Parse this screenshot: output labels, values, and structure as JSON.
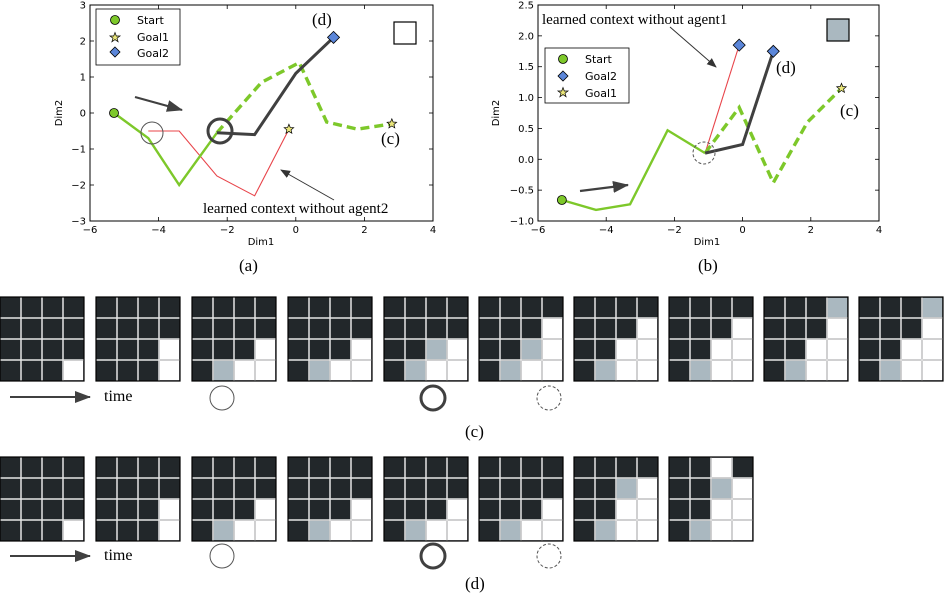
{
  "figure": {
    "captions": {
      "a": "(a)",
      "b": "(b)",
      "c": "(c)",
      "d": "(d)"
    },
    "colors": {
      "green": "#7dc82a",
      "dark": "#404040",
      "red": "#e8444a",
      "cell_dark": "#22272a",
      "cell_gray": "#aab8c0",
      "cell_white": "#ffffff"
    },
    "time_label": "time"
  },
  "chart_data": [
    {
      "id": "a",
      "type": "line",
      "xlabel": "Dim1",
      "ylabel": "Dim2",
      "xlim": [
        -6,
        4
      ],
      "ylim": [
        -3,
        3
      ],
      "xticks": [
        "−6",
        "−4",
        "−2",
        "0",
        "2",
        "4"
      ],
      "yticks": [
        "−3",
        "−2",
        "−1",
        "0",
        "1",
        "2",
        "3"
      ],
      "legend": [
        "Start",
        "Goal1",
        "Goal2"
      ],
      "legend_position": "top-left",
      "points": {
        "start": [
          -5.3,
          0.0
        ],
        "goal1": [
          -0.2,
          -0.45
        ],
        "goal2": [
          1.1,
          2.1
        ],
        "goal1_far": [
          2.8,
          -0.3
        ]
      },
      "series": [
        {
          "style": "green-solid",
          "x": [
            -5.3,
            -4.3,
            -3.4,
            -2.3
          ],
          "y": [
            0.0,
            -0.7,
            -2.0,
            -0.55
          ]
        },
        {
          "style": "green-dashed",
          "x": [
            -2.3,
            -1.0,
            0.1,
            0.9,
            1.8,
            2.8
          ],
          "y": [
            -0.55,
            0.85,
            1.4,
            -0.25,
            -0.45,
            -0.3
          ]
        },
        {
          "style": "dark",
          "x": [
            -2.3,
            -1.2,
            0.0,
            1.1
          ],
          "y": [
            -0.55,
            -0.6,
            1.1,
            2.1
          ]
        },
        {
          "style": "red",
          "x": [
            -4.3,
            -3.4,
            -2.3,
            -1.2,
            -0.2
          ],
          "y": [
            -0.5,
            -0.5,
            -1.75,
            -2.3,
            -0.45
          ]
        }
      ],
      "annotations": {
        "d": "(d)",
        "c": "(c)",
        "note": "learned context without agent2"
      }
    },
    {
      "id": "b",
      "type": "line",
      "xlabel": "Dim1",
      "ylabel": "Dim2",
      "xlim": [
        -6,
        4
      ],
      "ylim": [
        -1.0,
        2.5
      ],
      "xticks": [
        "−6",
        "−4",
        "−2",
        "0",
        "2",
        "4"
      ],
      "yticks": [
        "−1.0",
        "−0.5",
        "0.0",
        "0.5",
        "1.0",
        "1.5",
        "2.0",
        "2.5"
      ],
      "legend": [
        "Start",
        "Goal2",
        "Goal1"
      ],
      "legend_position": "top-left",
      "points": {
        "start": [
          -5.3,
          -0.66
        ],
        "goal2": [
          0.9,
          1.75
        ],
        "goal2_red": [
          -0.1,
          1.85
        ],
        "goal1": [
          2.9,
          1.15
        ]
      },
      "series": [
        {
          "style": "green-solid",
          "x": [
            -5.3,
            -4.3,
            -3.3,
            -2.2,
            -1.1
          ],
          "y": [
            -0.66,
            -0.82,
            -0.73,
            0.47,
            0.1
          ]
        },
        {
          "style": "green-dashed",
          "x": [
            -1.1,
            -0.1,
            0.9,
            1.9,
            2.9
          ],
          "y": [
            0.1,
            0.84,
            -0.38,
            0.6,
            1.15
          ]
        },
        {
          "style": "dark",
          "x": [
            -1.1,
            0.0,
            0.9
          ],
          "y": [
            0.1,
            0.24,
            1.75
          ]
        },
        {
          "style": "red",
          "x": [
            -1.1,
            -0.1
          ],
          "y": [
            0.1,
            1.85
          ]
        }
      ],
      "annotations": {
        "d": "(d)",
        "c": "(c)",
        "note": "learned context without agent1"
      }
    }
  ]
}
